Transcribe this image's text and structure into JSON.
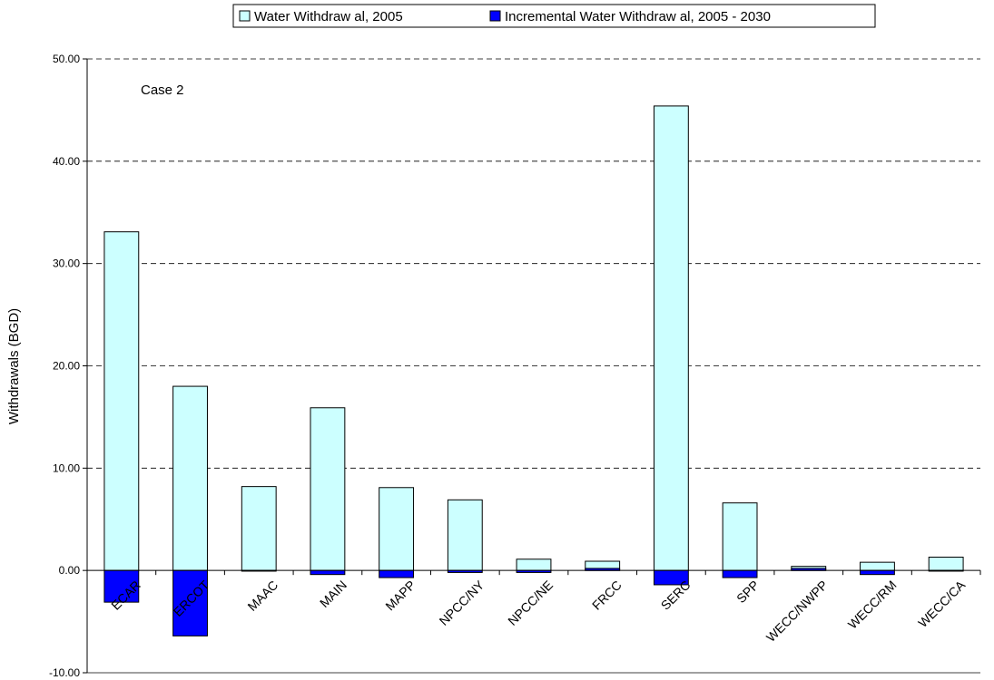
{
  "chart_data": {
    "type": "bar",
    "annotation": "Case 2",
    "ylabel": "Withdrawals (BGD)",
    "xlabel": "",
    "ylim": [
      -10,
      50
    ],
    "yticks": [
      "-10.00",
      "0.00",
      "10.00",
      "20.00",
      "30.00",
      "40.00",
      "50.00"
    ],
    "grid": true,
    "legend_position": "top",
    "categories": [
      "ECAR",
      "ERCOT",
      "MAAC",
      "MAIN",
      "MAPP",
      "NPCC/NY",
      "NPCC/NE",
      "FRCC",
      "SERC",
      "SPP",
      "WECC/NWPP",
      "WECC/RM",
      "WECC/CA"
    ],
    "series": [
      {
        "name": "Water Withdraw al, 2005",
        "color": "#ccffff",
        "values": [
          33.1,
          18.0,
          8.2,
          15.9,
          8.1,
          6.9,
          1.1,
          0.9,
          45.4,
          6.6,
          0.4,
          0.8,
          1.3
        ]
      },
      {
        "name": "Incremental Water Withdraw al, 2005 - 2030",
        "color": "#0000ff",
        "values": [
          -3.1,
          -6.4,
          0.0,
          -0.4,
          -0.7,
          -0.2,
          -0.2,
          0.2,
          -1.4,
          -0.7,
          0.2,
          -0.4,
          0.0
        ]
      }
    ]
  }
}
